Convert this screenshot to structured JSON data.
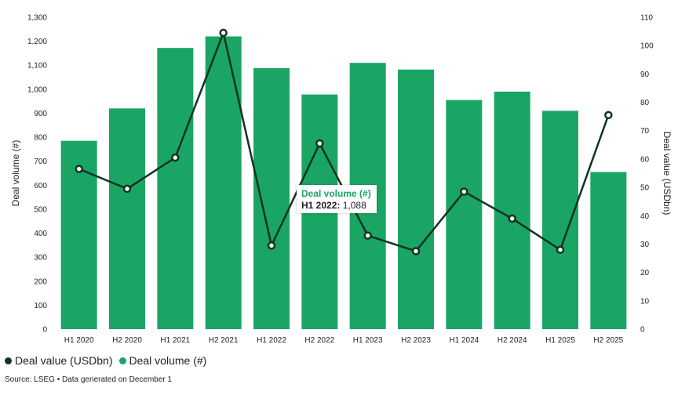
{
  "chart_data": {
    "type": "bar+line",
    "categories": [
      "H1 2020",
      "H2 2020",
      "H1 2021",
      "H2 2021",
      "H1 2022",
      "H2 2022",
      "H1 2023",
      "H2 2023",
      "H1 2024",
      "H2 2024",
      "H1 2025",
      "H2 2025"
    ],
    "series": [
      {
        "name": "Deal volume (#)",
        "type": "bar",
        "axis": "left",
        "color": "#1aa564",
        "values": [
          785,
          920,
          1172,
          1220,
          1088,
          978,
          1110,
          1082,
          955,
          990,
          910,
          655
        ]
      },
      {
        "name": "Deal value (USDbn)",
        "type": "line",
        "axis": "right",
        "color": "#0f3324",
        "values": [
          56.5,
          49.5,
          60.5,
          104.5,
          29.5,
          65.5,
          33,
          27.5,
          48.5,
          39,
          28,
          75.5
        ]
      }
    ],
    "y_left": {
      "label": "Deal volume (#)",
      "range": [
        0,
        1300
      ],
      "ticks": [
        "0",
        "100",
        "200",
        "300",
        "400",
        "500",
        "600",
        "700",
        "800",
        "900",
        "1,000",
        "1,100",
        "1,200",
        "1,300"
      ]
    },
    "y_right": {
      "label": "Deal value (USDbn)",
      "range": [
        0,
        110
      ],
      "ticks": [
        "0",
        "10",
        "20",
        "30",
        "40",
        "50",
        "60",
        "70",
        "80",
        "90",
        "100",
        "110"
      ]
    },
    "grid": false,
    "legend_position": "bottom-left"
  },
  "legend": [
    {
      "label": "Deal value (USDbn)",
      "color": "#0f3324"
    },
    {
      "label": "Deal volume (#)",
      "color": "#1aa564"
    }
  ],
  "tooltip": {
    "series": "Deal volume (#)",
    "category": "H1 2022",
    "value": "1,088"
  },
  "source": "Source: LSEG • Data generated on December 1"
}
